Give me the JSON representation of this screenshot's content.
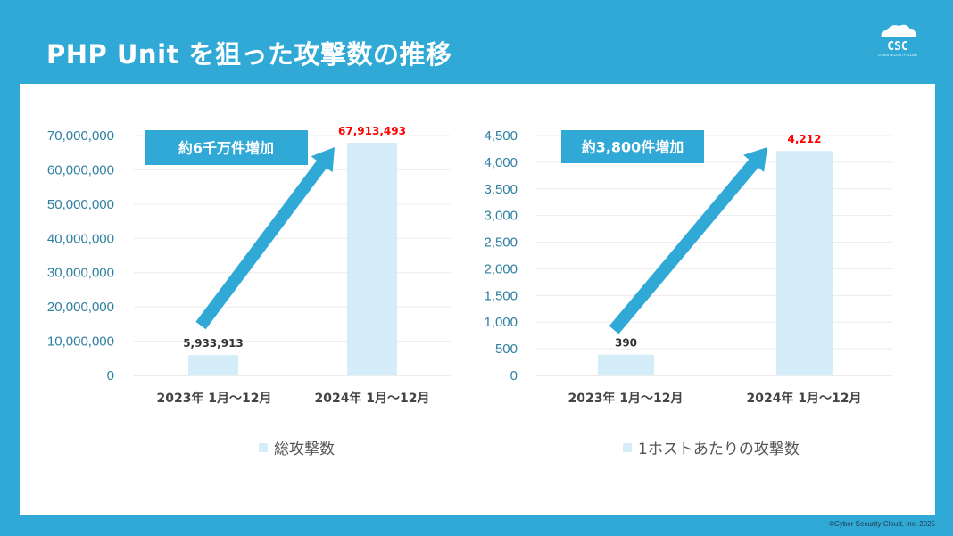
{
  "title": "PHP Unit を狙った攻撃数の推移",
  "logo": {
    "text": "CSC",
    "subtext": "CYBER SECURITY CLOUD"
  },
  "footer": "©Cyber Security Cloud, Inc. 2025",
  "colors": {
    "background": "#31a9d6",
    "bar": "#d5edf8",
    "arrow": "#31a9d6",
    "highlight_label": "#ff0000"
  },
  "chart_data": [
    {
      "type": "bar",
      "categories": [
        "2023年  1月～12月",
        "2024年 1月～12月"
      ],
      "values": [
        5933913,
        67913493
      ],
      "data_labels": [
        "5,933,913",
        "67,913,493"
      ],
      "ylim": [
        0,
        70000000
      ],
      "yticks": [
        "0",
        "10,000,000",
        "20,000,000",
        "30,000,000",
        "40,000,000",
        "50,000,000",
        "60,000,000",
        "70,000,000"
      ],
      "legend": "総攻撃数",
      "legend_position": "bottom",
      "callout": "約6千万件増加",
      "grid": true
    },
    {
      "type": "bar",
      "categories": [
        "2023年  1月～12月",
        "2024年 1月～12月"
      ],
      "values": [
        390,
        4212
      ],
      "data_labels": [
        "390",
        "4,212"
      ],
      "ylim": [
        0,
        4500
      ],
      "yticks": [
        "0",
        "500",
        "1,000",
        "1,500",
        "2,000",
        "2,500",
        "3,000",
        "3,500",
        "4,000",
        "4,500"
      ],
      "legend": "1ホストあたりの攻撃数",
      "legend_position": "bottom",
      "callout": "約3,800件増加",
      "grid": true
    }
  ]
}
